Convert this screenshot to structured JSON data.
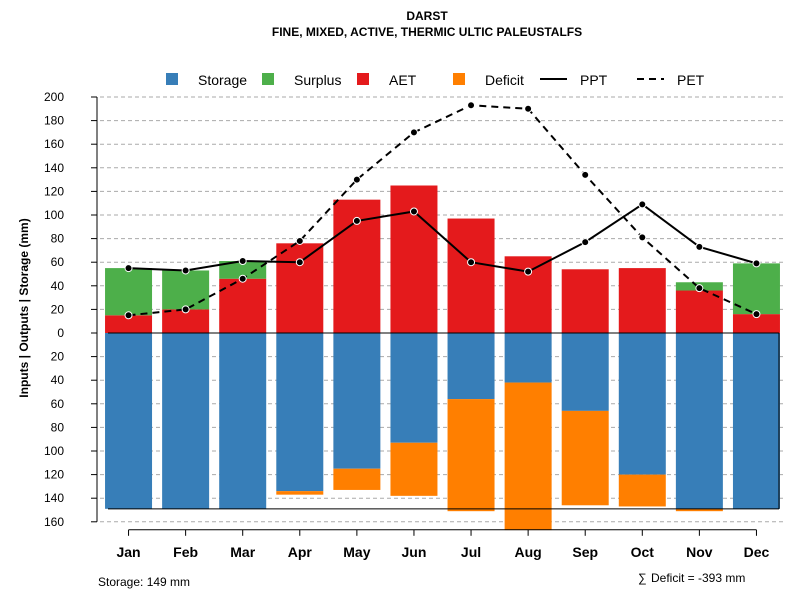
{
  "chart_data": {
    "type": "bar",
    "title": "DARST",
    "subtitle": "FINE, MIXED, ACTIVE, THERMIC ULTIC PALEUSTALFS",
    "ylabel": "Inputs | Outputs | Storage    (mm)",
    "ylim_top": [
      0,
      200
    ],
    "ylim_bottom": [
      0,
      160
    ],
    "yticks_top": [
      "200",
      "180",
      "160",
      "140",
      "120",
      "100",
      "80",
      "60",
      "40",
      "20",
      "0"
    ],
    "yticks_bottom": [
      "20",
      "40",
      "60",
      "80",
      "100",
      "120",
      "140",
      "160"
    ],
    "categories": [
      "Jan",
      "Feb",
      "Mar",
      "Apr",
      "May",
      "Jun",
      "Jul",
      "Aug",
      "Sep",
      "Oct",
      "Nov",
      "Dec"
    ],
    "legend": {
      "storage": "Storage",
      "surplus": "Surplus",
      "aet": "AET",
      "deficit": "Deficit",
      "ppt": "PPT",
      "pet": "PET"
    },
    "colors": {
      "storage": "#377EB8",
      "surplus": "#4DAF4A",
      "aet": "#E41A1C",
      "deficit": "#FF7F00"
    },
    "series": {
      "aet": [
        15,
        20,
        46,
        76,
        113,
        125,
        97,
        65,
        54,
        55,
        36,
        16
      ],
      "surplus": [
        40,
        33,
        15,
        0,
        0,
        0,
        0,
        0,
        0,
        0,
        7,
        43
      ],
      "storage": [
        149,
        149,
        149,
        134,
        115,
        93,
        56,
        42,
        66,
        120,
        149,
        149
      ],
      "deficit": [
        0,
        0,
        0,
        3,
        18,
        45,
        95,
        125,
        80,
        27,
        2,
        0
      ],
      "ppt": [
        55,
        53,
        61,
        60,
        95,
        103,
        60,
        52,
        77,
        109,
        73,
        59
      ],
      "pet": [
        15,
        20,
        46,
        78,
        130,
        170,
        193,
        190,
        134,
        81,
        38,
        16
      ]
    },
    "storage_capacity": 149,
    "footer_storage": "Storage: 149 mm",
    "footer_deficit": "Deficit = -393 mm",
    "footer_deficit_symbol": "∑"
  }
}
